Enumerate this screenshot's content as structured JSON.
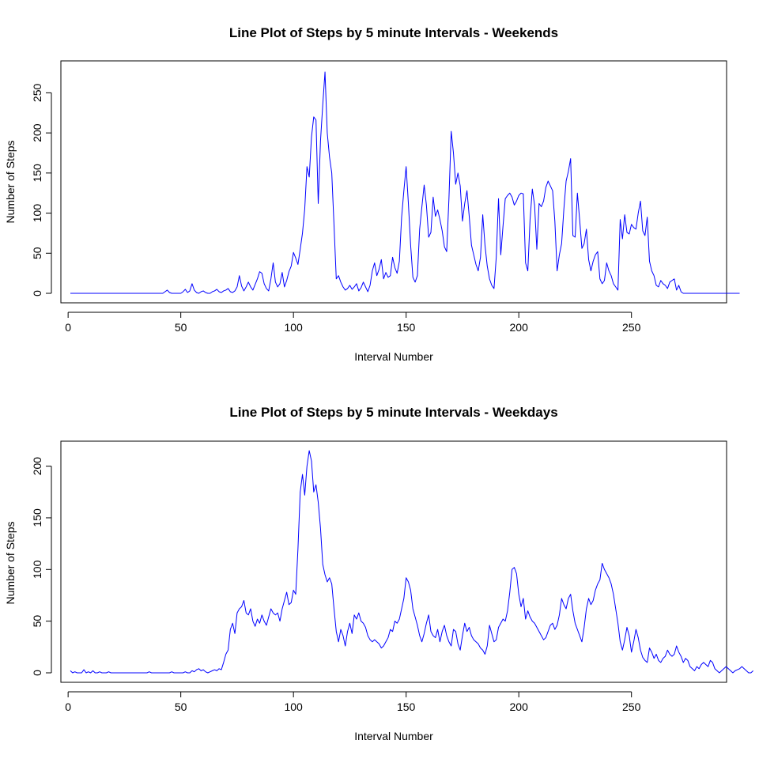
{
  "chart_data": [
    {
      "type": "line",
      "title": "Line Plot of Steps by 5 minute Intervals - Weekends",
      "xlabel": "Interval Number",
      "ylabel": "Number of Steps",
      "xlim": [
        1,
        288
      ],
      "ylim": [
        0,
        278
      ],
      "x_ticks": [
        0,
        50,
        100,
        150,
        200,
        250
      ],
      "y_ticks": [
        0,
        50,
        100,
        150,
        200,
        250
      ],
      "line_color": "#0000ff",
      "grid": false,
      "legend": "none",
      "series": [
        {
          "x_start": 1,
          "x_step": 1,
          "values": [
            0,
            0,
            0,
            0,
            0,
            0,
            0,
            0,
            0,
            0,
            0,
            0,
            0,
            0,
            0,
            0,
            0,
            0,
            0,
            0,
            0,
            0,
            0,
            0,
            0,
            0,
            0,
            0,
            0,
            0,
            0,
            0,
            0,
            0,
            0,
            0,
            0,
            0,
            0,
            0,
            0,
            0,
            2,
            4,
            1,
            0,
            0,
            0,
            0,
            0,
            2,
            5,
            1,
            3,
            12,
            4,
            1,
            0,
            2,
            3,
            1,
            0,
            0,
            2,
            3,
            5,
            2,
            1,
            3,
            4,
            6,
            2,
            1,
            3,
            8,
            22,
            9,
            3,
            8,
            14,
            8,
            4,
            11,
            18,
            27,
            25,
            12,
            6,
            3,
            18,
            38,
            14,
            8,
            12,
            26,
            8,
            16,
            27,
            34,
            51,
            44,
            36,
            55,
            75,
            105,
            158,
            145,
            195,
            220,
            216,
            112,
            190,
            235,
            276,
            200,
            170,
            150,
            85,
            18,
            22,
            14,
            8,
            4,
            6,
            10,
            5,
            8,
            12,
            3,
            7,
            14,
            8,
            2,
            10,
            28,
            38,
            22,
            30,
            42,
            18,
            26,
            20,
            22,
            45,
            32,
            25,
            40,
            95,
            128,
            158,
            112,
            60,
            20,
            14,
            22,
            80,
            108,
            135,
            110,
            70,
            76,
            120,
            96,
            104,
            92,
            78,
            58,
            52,
            118,
            202,
            175,
            136,
            150,
            134,
            90,
            112,
            128,
            96,
            60,
            48,
            36,
            28,
            45,
            98,
            60,
            34,
            18,
            10,
            6,
            45,
            118,
            48,
            84,
            118,
            122,
            125,
            120,
            110,
            115,
            122,
            125,
            124,
            38,
            28,
            92,
            130,
            110,
            55,
            112,
            108,
            115,
            132,
            140,
            134,
            128,
            90,
            28,
            48,
            62,
            105,
            140,
            152,
            168,
            72,
            70,
            125,
            92,
            56,
            62,
            80,
            42,
            28,
            40,
            48,
            52,
            18,
            12,
            16,
            38,
            28,
            22,
            12,
            8,
            4,
            92,
            68,
            98,
            76,
            74,
            86,
            82,
            80,
            100,
            115,
            78,
            72,
            95,
            40,
            28,
            22,
            10,
            8,
            16,
            12,
            10,
            6,
            14,
            16,
            18,
            4,
            10,
            2,
            0,
            0,
            0,
            0,
            0,
            0,
            0,
            0,
            0,
            0,
            0,
            0,
            0,
            0,
            0,
            0,
            0,
            0,
            0,
            0,
            0,
            0,
            0,
            0,
            0,
            0
          ]
        }
      ]
    },
    {
      "type": "line",
      "title": "Line Plot of Steps by 5 minute Intervals - Weekdays",
      "xlabel": "Interval Number",
      "ylabel": "Number of Steps",
      "xlim": [
        1,
        288
      ],
      "ylim": [
        0,
        215
      ],
      "x_ticks": [
        0,
        50,
        100,
        150,
        200,
        250
      ],
      "y_ticks": [
        0,
        50,
        100,
        150,
        200
      ],
      "line_color": "#0000ff",
      "grid": false,
      "legend": "none",
      "series": [
        {
          "x_start": 1,
          "x_step": 1,
          "values": [
            2,
            0,
            1,
            0,
            0,
            0,
            3,
            0,
            1,
            0,
            2,
            0,
            0,
            1,
            0,
            0,
            0,
            1,
            0,
            0,
            0,
            0,
            0,
            0,
            0,
            0,
            0,
            0,
            0,
            0,
            0,
            0,
            0,
            0,
            0,
            1,
            0,
            0,
            0,
            0,
            0,
            0,
            0,
            0,
            0,
            1,
            0,
            0,
            0,
            0,
            0,
            1,
            0,
            0,
            2,
            1,
            3,
            4,
            2,
            3,
            1,
            0,
            1,
            2,
            3,
            2,
            4,
            3,
            10,
            18,
            22,
            42,
            48,
            38,
            58,
            62,
            64,
            70,
            58,
            56,
            62,
            50,
            45,
            52,
            48,
            56,
            50,
            46,
            54,
            62,
            58,
            56,
            58,
            50,
            62,
            70,
            78,
            66,
            68,
            80,
            76,
            120,
            175,
            192,
            172,
            200,
            215,
            205,
            175,
            182,
            165,
            140,
            105,
            95,
            88,
            92,
            86,
            62,
            40,
            30,
            42,
            36,
            26,
            40,
            48,
            38,
            56,
            52,
            58,
            50,
            48,
            44,
            36,
            32,
            30,
            32,
            30,
            28,
            24,
            26,
            30,
            34,
            42,
            40,
            50,
            48,
            52,
            62,
            72,
            92,
            88,
            80,
            62,
            54,
            46,
            36,
            30,
            38,
            48,
            56,
            40,
            36,
            34,
            42,
            30,
            40,
            46,
            36,
            30,
            26,
            42,
            40,
            28,
            22,
            36,
            48,
            40,
            44,
            36,
            32,
            30,
            28,
            24,
            22,
            18,
            26,
            46,
            38,
            30,
            32,
            44,
            48,
            52,
            50,
            60,
            78,
            100,
            102,
            96,
            76,
            64,
            72,
            52,
            60,
            54,
            50,
            48,
            44,
            40,
            36,
            32,
            34,
            40,
            46,
            48,
            42,
            46,
            56,
            72,
            66,
            62,
            72,
            76,
            60,
            48,
            42,
            36,
            30,
            44,
            62,
            72,
            66,
            70,
            80,
            86,
            90,
            106,
            100,
            96,
            92,
            86,
            76,
            62,
            48,
            30,
            22,
            32,
            44,
            36,
            20,
            30,
            42,
            34,
            22,
            15,
            12,
            10,
            24,
            20,
            14,
            18,
            12,
            10,
            14,
            16,
            22,
            18,
            16,
            18,
            26,
            20,
            16,
            10,
            14,
            12,
            6,
            4,
            2,
            6,
            4,
            8,
            10,
            8,
            6,
            12,
            10,
            4,
            2,
            0,
            2,
            4,
            6,
            4,
            2,
            0,
            2,
            3,
            4,
            6,
            4,
            2,
            0,
            0,
            2
          ]
        }
      ]
    }
  ]
}
